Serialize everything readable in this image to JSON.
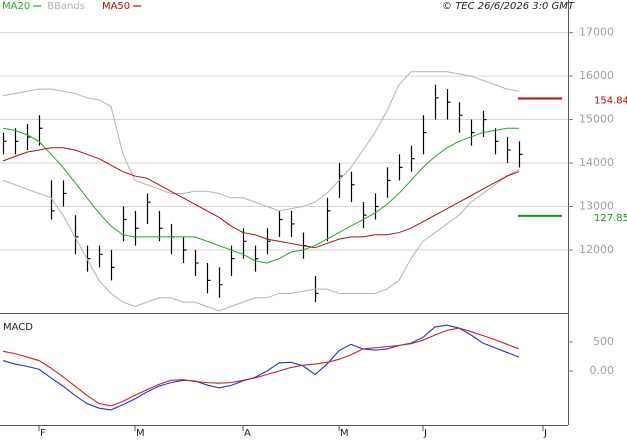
{
  "chart_data": [
    {
      "type": "ohlc",
      "title": "© TEC 26/6/2026 3:0 GMT",
      "ylim": [
        10550,
        17750
      ],
      "yticks": [
        12000,
        13000,
        14000,
        15000,
        16000,
        17000
      ],
      "grid": true,
      "bar_color": "#000000",
      "high": [
        14700,
        14800,
        14900,
        15100,
        13600,
        13600,
        12800,
        12100,
        12100,
        12000,
        13000,
        12900,
        13300,
        12900,
        12600,
        12300,
        12000,
        11700,
        11600,
        12100,
        12500,
        12100,
        12500,
        12900,
        12900,
        12400,
        11400,
        13200,
        14000,
        13800,
        13100,
        13300,
        13900,
        14200,
        14400,
        15100,
        15800,
        15700,
        15400,
        15000,
        15200,
        14800,
        14600,
        14500
      ],
      "low": [
        14200,
        14200,
        14300,
        14400,
        12700,
        13000,
        11900,
        11500,
        11600,
        11300,
        12200,
        12100,
        12600,
        12200,
        11900,
        11700,
        11400,
        11000,
        10900,
        11400,
        11800,
        11500,
        11900,
        12300,
        12300,
        11800,
        10800,
        12200,
        13200,
        13100,
        12500,
        12700,
        13200,
        13600,
        13800,
        14200,
        15000,
        15000,
        14700,
        14400,
        14600,
        14200,
        14000,
        13900
      ],
      "close": [
        14500,
        14500,
        14600,
        14800,
        12900,
        13300,
        12300,
        11800,
        11900,
        11600,
        12700,
        12500,
        13100,
        12500,
        12300,
        12000,
        11700,
        11300,
        11200,
        11800,
        12200,
        11800,
        12200,
        12700,
        12600,
        12100,
        11000,
        12900,
        13700,
        13500,
        12800,
        13000,
        13600,
        13900,
        14100,
        14700,
        15500,
        15400,
        15100,
        14700,
        15000,
        14500,
        14300,
        14200
      ],
      "series": [
        {
          "name": "MA20",
          "color": "#22aa22",
          "values": [
            14800,
            14750,
            14650,
            14500,
            14200,
            13900,
            13550,
            13200,
            12850,
            12550,
            12350,
            12300,
            12300,
            12300,
            12300,
            12300,
            12300,
            12200,
            12100,
            12000,
            11900,
            11750,
            11700,
            11800,
            11950,
            12000,
            12100,
            12250,
            12400,
            12550,
            12700,
            12850,
            13050,
            13300,
            13600,
            13900,
            14150,
            14350,
            14500,
            14600,
            14700,
            14750,
            14800,
            14800
          ]
        },
        {
          "name": "BBands",
          "color": "#b4b4b4",
          "upper": [
            15550,
            15600,
            15650,
            15700,
            15700,
            15650,
            15600,
            15500,
            15450,
            15300,
            14200,
            13600,
            13500,
            13400,
            13300,
            13300,
            13350,
            13350,
            13300,
            13200,
            13200,
            13100,
            13000,
            12900,
            12950,
            13000,
            13100,
            13300,
            13600,
            13900,
            14300,
            14700,
            15200,
            15800,
            16100,
            16100,
            16100,
            16100,
            16050,
            16000,
            15900,
            15800,
            15700,
            15650
          ],
          "lower": [
            13600,
            13500,
            13400,
            13300,
            13200,
            12800,
            12300,
            11800,
            11300,
            11000,
            10800,
            10700,
            10800,
            10900,
            10900,
            10800,
            10800,
            10700,
            10600,
            10700,
            10800,
            10900,
            10900,
            11000,
            11000,
            11050,
            11100,
            11100,
            11000,
            11000,
            11000,
            11000,
            11100,
            11300,
            11800,
            12200,
            12400,
            12600,
            12800,
            13100,
            13300,
            13500,
            13700,
            13850
          ]
        },
        {
          "name": "MA50",
          "color": "#aa1111",
          "values": [
            14050,
            14150,
            14250,
            14300,
            14350,
            14350,
            14300,
            14200,
            14100,
            13950,
            13800,
            13700,
            13650,
            13500,
            13350,
            13200,
            13050,
            12900,
            12750,
            12550,
            12400,
            12350,
            12250,
            12200,
            12150,
            12100,
            12050,
            12150,
            12250,
            12300,
            12300,
            12350,
            12350,
            12400,
            12500,
            12650,
            12800,
            12950,
            13100,
            13250,
            13400,
            13550,
            13700,
            13800
          ]
        }
      ],
      "levels": [
        {
          "label": "154.84",
          "value": 15484,
          "color": "#cc0000"
        },
        {
          "label": "127.85",
          "value": 12785,
          "color": "#119911"
        }
      ]
    },
    {
      "type": "line",
      "title": "MACD",
      "categories": [
        null,
        null,
        null,
        "F",
        null,
        null,
        null,
        null,
        null,
        null,
        null,
        "M",
        null,
        null,
        null,
        null,
        null,
        null,
        null,
        null,
        "A",
        null,
        null,
        null,
        null,
        null,
        null,
        null,
        "M",
        null,
        null,
        null,
        null,
        null,
        null,
        "J",
        null,
        null,
        null,
        null,
        null,
        null,
        null,
        null,
        null,
        "J"
      ],
      "ylim": [
        -930,
        965
      ],
      "yticks": [
        {
          "value": 0,
          "label": "0.00"
        },
        500
      ],
      "series": [
        {
          "color": "#2233cc",
          "values": [
            180,
            120,
            80,
            30,
            -120,
            -260,
            -420,
            -560,
            -640,
            -670,
            -580,
            -480,
            -360,
            -260,
            -200,
            -160,
            -170,
            -240,
            -290,
            -250,
            -170,
            -110,
            0,
            140,
            150,
            90,
            -60,
            120,
            350,
            460,
            380,
            360,
            380,
            440,
            480,
            580,
            760,
            790,
            740,
            620,
            480,
            400,
            320,
            240,
            null,
            null
          ]
        },
        {
          "color": "#cc2222",
          "values": [
            340,
            300,
            240,
            180,
            50,
            -100,
            -260,
            -420,
            -560,
            -600,
            -520,
            -420,
            -320,
            -230,
            -160,
            -150,
            -180,
            -200,
            -210,
            -200,
            -160,
            -120,
            -60,
            0,
            60,
            100,
            120,
            150,
            200,
            280,
            380,
            400,
            420,
            440,
            470,
            530,
            620,
            700,
            740,
            680,
            610,
            540,
            460,
            380,
            null,
            null
          ]
        }
      ]
    }
  ]
}
